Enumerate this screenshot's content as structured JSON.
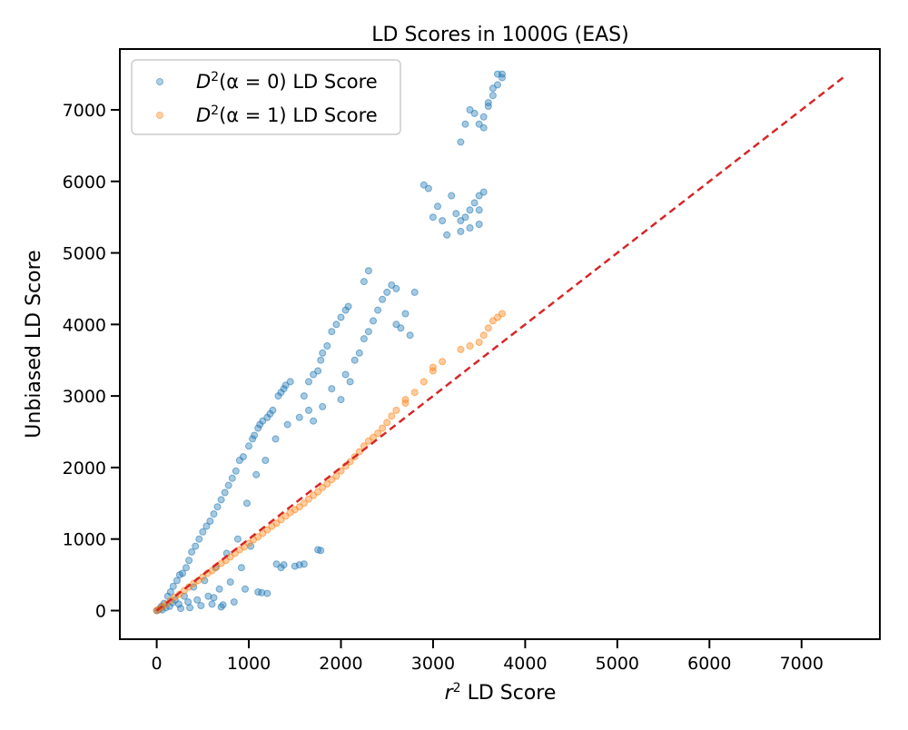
{
  "chart_data": {
    "type": "scatter",
    "title": "LD Scores in 1000G (EAS)",
    "xlabel_prefix": "r",
    "xlabel_sup": "2",
    "xlabel_suffix": " LD Score",
    "ylabel": "Unbiased LD Score",
    "xlim": [
      -400,
      7850
    ],
    "ylim": [
      -400,
      7850
    ],
    "xticks": [
      "0",
      "1000",
      "2000",
      "3000",
      "4000",
      "5000",
      "6000",
      "7000"
    ],
    "yticks": [
      "0",
      "1000",
      "2000",
      "3000",
      "4000",
      "5000",
      "6000",
      "7000"
    ],
    "legend_position": "upper-left",
    "grid": false,
    "series": [
      {
        "name": "D²(α = 0) LD Score",
        "legend": {
          "base": "D",
          "sup": "2",
          "arg": "(α = 0)",
          "suffix": " LD Score"
        },
        "color": "#1f77b4",
        "points": [
          [
            0,
            0
          ],
          [
            20,
            10
          ],
          [
            40,
            30
          ],
          [
            50,
            60
          ],
          [
            60,
            10
          ],
          [
            80,
            100
          ],
          [
            100,
            40
          ],
          [
            120,
            200
          ],
          [
            140,
            60
          ],
          [
            150,
            260
          ],
          [
            170,
            110
          ],
          [
            180,
            340
          ],
          [
            200,
            150
          ],
          [
            220,
            420
          ],
          [
            240,
            90
          ],
          [
            250,
            500
          ],
          [
            260,
            30
          ],
          [
            280,
            520
          ],
          [
            300,
            200
          ],
          [
            320,
            600
          ],
          [
            340,
            120
          ],
          [
            350,
            700
          ],
          [
            360,
            40
          ],
          [
            380,
            820
          ],
          [
            400,
            330
          ],
          [
            420,
            900
          ],
          [
            440,
            150
          ],
          [
            460,
            1000
          ],
          [
            480,
            70
          ],
          [
            500,
            1100
          ],
          [
            520,
            420
          ],
          [
            540,
            1180
          ],
          [
            560,
            200
          ],
          [
            580,
            1250
          ],
          [
            600,
            90
          ],
          [
            620,
            1350
          ],
          [
            640,
            600
          ],
          [
            660,
            1450
          ],
          [
            680,
            300
          ],
          [
            700,
            1550
          ],
          [
            720,
            80
          ],
          [
            740,
            1650
          ],
          [
            760,
            800
          ],
          [
            780,
            1750
          ],
          [
            800,
            400
          ],
          [
            820,
            1850
          ],
          [
            840,
            120
          ],
          [
            860,
            1950
          ],
          [
            880,
            1000
          ],
          [
            900,
            2100
          ],
          [
            920,
            600
          ],
          [
            940,
            2150
          ],
          [
            960,
            300
          ],
          [
            980,
            1500
          ],
          [
            1000,
            2300
          ],
          [
            1020,
            900
          ],
          [
            1040,
            2400
          ],
          [
            1060,
            2450
          ],
          [
            1080,
            1900
          ],
          [
            1100,
            2550
          ],
          [
            1120,
            2600
          ],
          [
            1150,
            2650
          ],
          [
            1180,
            2100
          ],
          [
            1200,
            2700
          ],
          [
            1230,
            2750
          ],
          [
            1260,
            2800
          ],
          [
            1290,
            2400
          ],
          [
            1320,
            3000
          ],
          [
            1350,
            3050
          ],
          [
            1380,
            3100
          ],
          [
            1400,
            3150
          ],
          [
            1420,
            2600
          ],
          [
            1450,
            3200
          ],
          [
            1300,
            650
          ],
          [
            1350,
            600
          ],
          [
            1380,
            640
          ],
          [
            1500,
            620
          ],
          [
            1550,
            640
          ],
          [
            1600,
            650
          ],
          [
            1750,
            850
          ],
          [
            1780,
            840
          ],
          [
            1100,
            260
          ],
          [
            1140,
            250
          ],
          [
            1200,
            240
          ],
          [
            700,
            50
          ],
          [
            620,
            180
          ],
          [
            1600,
            3000
          ],
          [
            1650,
            3200
          ],
          [
            1700,
            3300
          ],
          [
            1750,
            3350
          ],
          [
            1780,
            3500
          ],
          [
            1800,
            3600
          ],
          [
            1850,
            3700
          ],
          [
            1900,
            3900
          ],
          [
            1950,
            4000
          ],
          [
            2000,
            4100
          ],
          [
            2050,
            4200
          ],
          [
            2080,
            4250
          ],
          [
            1550,
            2700
          ],
          [
            1650,
            2800
          ],
          [
            1700,
            2650
          ],
          [
            1800,
            2850
          ],
          [
            1900,
            3100
          ],
          [
            2000,
            2950
          ],
          [
            2050,
            3300
          ],
          [
            2100,
            3200
          ],
          [
            2150,
            3500
          ],
          [
            2200,
            3600
          ],
          [
            2250,
            3800
          ],
          [
            2300,
            3900
          ],
          [
            2350,
            4050
          ],
          [
            2400,
            4200
          ],
          [
            2450,
            4350
          ],
          [
            2500,
            4450
          ],
          [
            2550,
            4550
          ],
          [
            2600,
            4500
          ],
          [
            2250,
            4600
          ],
          [
            2300,
            4750
          ],
          [
            2600,
            4000
          ],
          [
            2650,
            3950
          ],
          [
            2700,
            4150
          ],
          [
            2800,
            4450
          ],
          [
            2750,
            3850
          ],
          [
            2900,
            5950
          ],
          [
            2950,
            5900
          ],
          [
            3050,
            5650
          ],
          [
            3100,
            5450
          ],
          [
            3150,
            5250
          ],
          [
            3000,
            5500
          ],
          [
            3200,
            5800
          ],
          [
            3250,
            5550
          ],
          [
            3300,
            5450
          ],
          [
            3350,
            5500
          ],
          [
            3400,
            5600
          ],
          [
            3450,
            5700
          ],
          [
            3500,
            5800
          ],
          [
            3550,
            5850
          ],
          [
            3500,
            5400
          ],
          [
            3400,
            5350
          ],
          [
            3300,
            5300
          ],
          [
            3500,
            5600
          ],
          [
            3300,
            6550
          ],
          [
            3350,
            6800
          ],
          [
            3400,
            7000
          ],
          [
            3450,
            6950
          ],
          [
            3500,
            6800
          ],
          [
            3550,
            6900
          ],
          [
            3600,
            7100
          ],
          [
            3650,
            7200
          ],
          [
            3700,
            7350
          ],
          [
            3750,
            7450
          ],
          [
            3700,
            7500
          ],
          [
            3650,
            7300
          ],
          [
            3600,
            7050
          ],
          [
            3550,
            6750
          ],
          [
            3750,
            7500
          ]
        ]
      },
      {
        "name": "D²(α = 1) LD Score",
        "legend": {
          "base": "D",
          "sup": "2",
          "arg": "(α = 1)",
          "suffix": " LD Score"
        },
        "color": "#ff7f0e",
        "points": [
          [
            0,
            0
          ],
          [
            30,
            25
          ],
          [
            60,
            55
          ],
          [
            100,
            90
          ],
          [
            150,
            140
          ],
          [
            200,
            190
          ],
          [
            250,
            230
          ],
          [
            300,
            280
          ],
          [
            350,
            330
          ],
          [
            400,
            380
          ],
          [
            450,
            420
          ],
          [
            500,
            470
          ],
          [
            550,
            520
          ],
          [
            600,
            560
          ],
          [
            650,
            610
          ],
          [
            700,
            660
          ],
          [
            750,
            700
          ],
          [
            800,
            750
          ],
          [
            850,
            800
          ],
          [
            900,
            850
          ],
          [
            950,
            890
          ],
          [
            1000,
            940
          ],
          [
            1050,
            990
          ],
          [
            1100,
            1030
          ],
          [
            1150,
            1080
          ],
          [
            1200,
            1130
          ],
          [
            1250,
            1180
          ],
          [
            1300,
            1220
          ],
          [
            1350,
            1270
          ],
          [
            1400,
            1320
          ],
          [
            1450,
            1370
          ],
          [
            1500,
            1410
          ],
          [
            1550,
            1450
          ],
          [
            1600,
            1500
          ],
          [
            1650,
            1560
          ],
          [
            1700,
            1610
          ],
          [
            1750,
            1660
          ],
          [
            1800,
            1720
          ],
          [
            1850,
            1770
          ],
          [
            1900,
            1830
          ],
          [
            1950,
            1880
          ],
          [
            2000,
            1950
          ],
          [
            2050,
            2020
          ],
          [
            2100,
            2080
          ],
          [
            2150,
            2150
          ],
          [
            2200,
            2220
          ],
          [
            2250,
            2300
          ],
          [
            2300,
            2370
          ],
          [
            2350,
            2420
          ],
          [
            2400,
            2480
          ],
          [
            2450,
            2550
          ],
          [
            2500,
            2630
          ],
          [
            2550,
            2720
          ],
          [
            2600,
            2800
          ],
          [
            2700,
            2900
          ],
          [
            2800,
            3050
          ],
          [
            2900,
            3200
          ],
          [
            3000,
            3350
          ],
          [
            3100,
            3480
          ],
          [
            3300,
            3650
          ],
          [
            3400,
            3700
          ],
          [
            3500,
            3750
          ],
          [
            3550,
            3850
          ],
          [
            3600,
            3950
          ],
          [
            3650,
            4050
          ],
          [
            3700,
            4100
          ],
          [
            3750,
            4150
          ],
          [
            3000,
            3400
          ],
          [
            2700,
            2950
          ]
        ]
      }
    ],
    "reference_line": {
      "x": [
        0,
        7450
      ],
      "y": [
        0,
        7450
      ],
      "color": "#d62728",
      "style": "dashed"
    }
  }
}
